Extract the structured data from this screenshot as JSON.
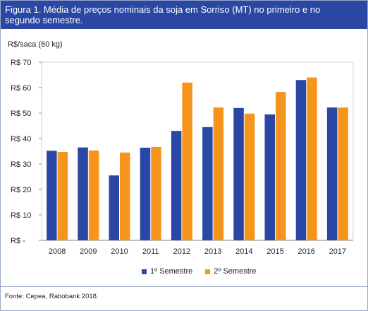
{
  "title": "Figura 1. Média de preços nominais da soja em Sorriso (MT) no primeiro e no segundo semestre.",
  "source": "Fonte: Cepea, Rabobank 2018.",
  "colors": {
    "header": "#2a47a5",
    "series1": "#2a47a5",
    "series2": "#f7941d"
  },
  "chart_data": {
    "type": "bar",
    "ylabel": "R$/saca (60 kg)",
    "ylim": [
      0,
      70
    ],
    "yticks": [
      0,
      10,
      20,
      30,
      40,
      50,
      60,
      70
    ],
    "yticklabels": [
      "R$ -",
      "R$ 10",
      "R$ 20",
      "R$ 30",
      "R$ 40",
      "R$ 50",
      "R$ 60",
      "R$ 70"
    ],
    "categories": [
      "2008",
      "2009",
      "2010",
      "2011",
      "2012",
      "2013",
      "2014",
      "2015",
      "2016",
      "2017"
    ],
    "series": [
      {
        "name": "1º Semestre",
        "values": [
          35.2,
          36.5,
          25.5,
          36.4,
          43.0,
          44.5,
          52.0,
          49.5,
          63.0,
          52.2
        ]
      },
      {
        "name": "2º Semestre",
        "values": [
          34.7,
          35.3,
          34.5,
          36.7,
          62.0,
          52.2,
          49.8,
          58.3,
          64.0,
          52.2
        ]
      }
    ],
    "legend_position": "bottom",
    "grid": false
  }
}
